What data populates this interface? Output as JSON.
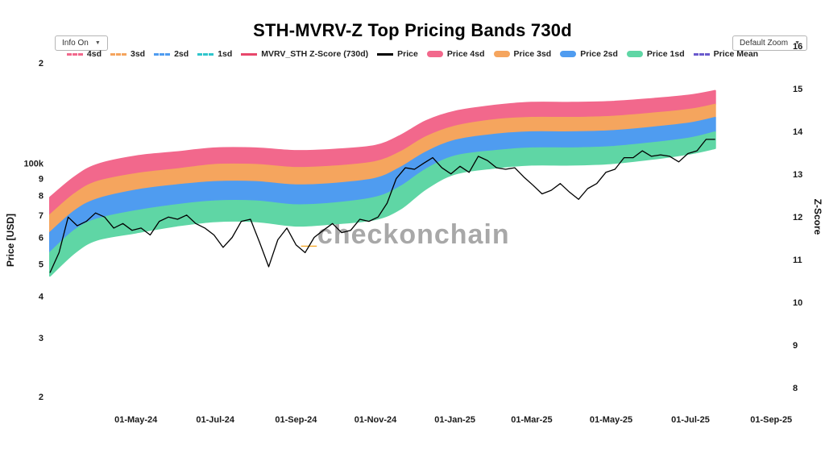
{
  "header": {
    "title": "STH-MVRV-Z Top Pricing Bands 730d",
    "info_button": {
      "label": "Info On",
      "arrow": "▼"
    },
    "zoom_button": {
      "label": "Default Zoom",
      "arrow": "▼"
    }
  },
  "legend": {
    "items": [
      {
        "label": "4sd",
        "color": "#f2688c",
        "style": "dashed-thin"
      },
      {
        "label": "3sd",
        "color": "#f5a55e",
        "style": "dashed-thin"
      },
      {
        "label": "2sd",
        "color": "#4f9cf0",
        "style": "dashed-thin"
      },
      {
        "label": "1sd",
        "color": "#2fc5cc",
        "style": "dashed-thin"
      },
      {
        "label": "MVRV_STH Z-Score (730d)",
        "color": "#e8476b",
        "style": "solid-thin"
      },
      {
        "label": "Price",
        "color": "#000000",
        "style": "solid-thin"
      },
      {
        "label": "Price 4sd",
        "color": "#f2688c",
        "style": "solid-thick"
      },
      {
        "label": "Price 3sd",
        "color": "#f5a55e",
        "style": "solid-thick"
      },
      {
        "label": "Price 2sd",
        "color": "#4f9cf0",
        "style": "solid-thick"
      },
      {
        "label": "Price 1sd",
        "color": "#5fd6a5",
        "style": "solid-thick"
      },
      {
        "label": "Price Mean",
        "color": "#6a5acd",
        "style": "dashed-thin"
      }
    ]
  },
  "watermark": {
    "underscore": "_",
    "text": "checkonchain",
    "underscore_color": "#f5a623",
    "text_color": "#a8a8a8"
  },
  "chart_data": {
    "type": "bands+line",
    "title": "STH-MVRV-Z Top Pricing Bands 730d",
    "x_axis": {
      "range": [
        "2024-02-25",
        "2025-09-12"
      ],
      "ticks": [
        {
          "label": "01-May-24",
          "date": "2024-05-01"
        },
        {
          "label": "01-Jul-24",
          "date": "2024-07-01"
        },
        {
          "label": "01-Sep-24",
          "date": "2024-09-01"
        },
        {
          "label": "01-Nov-24",
          "date": "2024-11-01"
        },
        {
          "label": "01-Jan-25",
          "date": "2025-01-01"
        },
        {
          "label": "01-Mar-25",
          "date": "2025-03-01"
        },
        {
          "label": "01-May-25",
          "date": "2025-05-01"
        },
        {
          "label": "01-Jul-25",
          "date": "2025-07-01"
        },
        {
          "label": "01-Sep-25",
          "date": "2025-09-01"
        }
      ]
    },
    "y_left": {
      "label": "Price [USD]",
      "scale": "log",
      "range": [
        20000,
        200000
      ],
      "ticks": [
        {
          "value": 200000,
          "label": "2"
        },
        {
          "value": 100000,
          "label": "100k"
        },
        {
          "value": 90000,
          "label": "9"
        },
        {
          "value": 80000,
          "label": "8"
        },
        {
          "value": 70000,
          "label": "7"
        },
        {
          "value": 60000,
          "label": "6"
        },
        {
          "value": 50000,
          "label": "5"
        },
        {
          "value": 40000,
          "label": "4"
        },
        {
          "value": 30000,
          "label": "3"
        },
        {
          "value": 20000,
          "label": "2"
        }
      ]
    },
    "y_right": {
      "label": "Z-Score",
      "range": [
        8,
        16
      ],
      "ticks": [
        16,
        15,
        14,
        13,
        12,
        11,
        10,
        9,
        8
      ]
    },
    "bands": {
      "units": "USD thousands",
      "dates": [
        "2024-02-25",
        "2024-03-15",
        "2024-04-01",
        "2024-05-01",
        "2024-06-01",
        "2024-07-01",
        "2024-08-01",
        "2024-09-01",
        "2024-10-01",
        "2024-11-01",
        "2024-11-20",
        "2024-12-10",
        "2025-01-01",
        "2025-02-01",
        "2025-03-01",
        "2025-04-01",
        "2025-05-01",
        "2025-06-01",
        "2025-07-01",
        "2025-07-20"
      ],
      "levels_usd_k": {
        "band_floor": [
          46,
          54,
          59,
          62,
          65,
          67,
          67,
          65,
          66,
          68,
          73,
          84,
          93,
          97,
          99,
          99,
          100,
          103,
          107,
          111
        ],
        "price_1sd": [
          54,
          63,
          68,
          72,
          75,
          77,
          77,
          75,
          76,
          79,
          85,
          96,
          105,
          109,
          111,
          111,
          112,
          115,
          119,
          124
        ],
        "price_2sd": [
          62,
          72,
          78,
          83,
          86,
          88,
          88,
          86,
          87,
          90,
          97,
          108,
          117,
          122,
          124,
          124,
          125,
          128,
          132,
          137
        ],
        "price_3sd": [
          70,
          81,
          88,
          93,
          96,
          99,
          99,
          97,
          98,
          101,
          108,
          120,
          129,
          135,
          137,
          137,
          138,
          141,
          145,
          150
        ],
        "price_4sd": [
          79,
          91,
          99,
          105,
          108,
          111,
          111,
          109,
          110,
          113,
          121,
          134,
          143,
          149,
          152,
          152,
          153,
          156,
          160,
          165
        ]
      },
      "fills": [
        {
          "name": "price-band-4sd",
          "upper": "price_4sd",
          "lower": "price_3sd",
          "color": "#f2688c"
        },
        {
          "name": "price-band-3sd",
          "upper": "price_3sd",
          "lower": "price_2sd",
          "color": "#f5a55e"
        },
        {
          "name": "price-band-2sd",
          "upper": "price_2sd",
          "lower": "price_1sd",
          "color": "#4f9cf0"
        },
        {
          "name": "price-band-1sd",
          "upper": "price_1sd",
          "lower": "band_floor",
          "color": "#5fd6a5"
        }
      ]
    },
    "price": {
      "name": "Price",
      "color": "#000000",
      "dates": [
        "2024-02-25",
        "2024-03-03",
        "2024-03-10",
        "2024-03-17",
        "2024-03-24",
        "2024-03-31",
        "2024-04-07",
        "2024-04-14",
        "2024-04-21",
        "2024-04-28",
        "2024-05-05",
        "2024-05-12",
        "2024-05-19",
        "2024-05-26",
        "2024-06-02",
        "2024-06-09",
        "2024-06-16",
        "2024-06-23",
        "2024-06-30",
        "2024-07-07",
        "2024-07-14",
        "2024-07-21",
        "2024-07-28",
        "2024-08-04",
        "2024-08-11",
        "2024-08-18",
        "2024-08-25",
        "2024-09-01",
        "2024-09-08",
        "2024-09-15",
        "2024-09-22",
        "2024-09-29",
        "2024-10-06",
        "2024-10-13",
        "2024-10-20",
        "2024-10-27",
        "2024-11-03",
        "2024-11-10",
        "2024-11-17",
        "2024-11-24",
        "2024-12-01",
        "2024-12-08",
        "2024-12-15",
        "2024-12-22",
        "2024-12-29",
        "2025-01-05",
        "2025-01-12",
        "2025-01-19",
        "2025-01-26",
        "2025-02-02",
        "2025-02-09",
        "2025-02-16",
        "2025-02-23",
        "2025-03-02",
        "2025-03-09",
        "2025-03-16",
        "2025-03-23",
        "2025-03-30",
        "2025-04-06",
        "2025-04-13",
        "2025-04-20",
        "2025-04-27",
        "2025-05-04",
        "2025-05-11",
        "2025-05-18",
        "2025-05-25",
        "2025-06-01",
        "2025-06-08",
        "2025-06-15",
        "2025-06-22",
        "2025-06-29",
        "2025-07-06",
        "2025-07-13",
        "2025-07-20"
      ],
      "values_usd_k": [
        47,
        54,
        69,
        65,
        67,
        71,
        69,
        64,
        66,
        63,
        64,
        61,
        67,
        69,
        68,
        70,
        66,
        64,
        61,
        56,
        60,
        67,
        68,
        58,
        49,
        59,
        64,
        57,
        54,
        60,
        63,
        66,
        62,
        63,
        68,
        67,
        69,
        76,
        90,
        97,
        96,
        100,
        104,
        97,
        93,
        98,
        94,
        105,
        102,
        97,
        96,
        97,
        91,
        86,
        81,
        83,
        87,
        82,
        78,
        84,
        87,
        94,
        96,
        104,
        104,
        109,
        105,
        106,
        105,
        101,
        107,
        109,
        118,
        118
      ]
    }
  }
}
